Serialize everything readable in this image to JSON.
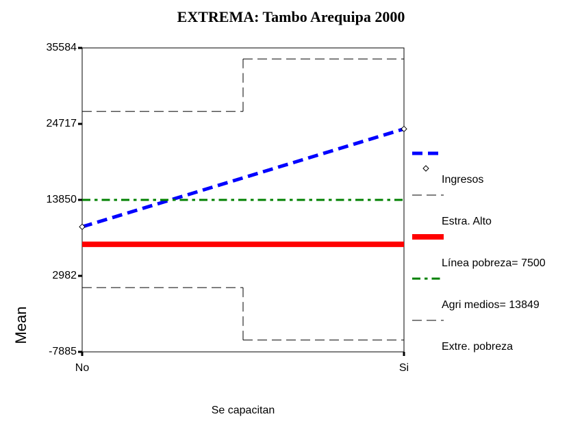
{
  "chart_data": {
    "type": "line",
    "title": "EXTREMA: Tambo Arequipa 2000",
    "x_label": "Se capacitan",
    "y_label": "Mean",
    "categories": [
      "No",
      "Si"
    ],
    "ylim": [
      -7885,
      35584
    ],
    "yticks": [
      -7885,
      2982,
      13850,
      24717,
      35584
    ],
    "series": [
      {
        "name": "Ingresos",
        "color": "#0000ff",
        "values": [
          10000,
          24000
        ],
        "line_style": "dashed",
        "line_width": 5,
        "marker": "diamond"
      },
      {
        "name": "Estra. Alto",
        "color": "#000000",
        "values": [
          26500,
          34000
        ],
        "line_style": "dashed",
        "line_width": 1,
        "step": true
      },
      {
        "name": "Línea pobreza= 7500",
        "color": "#ff0000",
        "values": [
          7500,
          7500
        ],
        "line_style": "solid",
        "line_width": 8
      },
      {
        "name": "Agri medios= 13849",
        "color": "#008000",
        "values": [
          13849,
          13849
        ],
        "line_style": "dash-dot",
        "line_width": 3
      },
      {
        "name": "Extre. pobreza",
        "color": "#000000",
        "values": [
          1300,
          -6200
        ],
        "line_style": "dashed",
        "line_width": 1,
        "step": true
      }
    ]
  }
}
